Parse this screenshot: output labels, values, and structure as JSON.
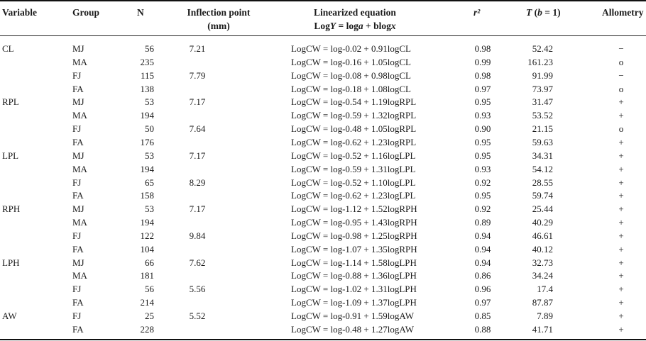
{
  "table": {
    "headers": {
      "variable": "Variable",
      "group": "Group",
      "n": "N",
      "inflection_line1": "Inflection point",
      "inflection_line2": "(mm)",
      "equation_line1": "Linearized equation",
      "equation_line2_pre": "Log",
      "equation_line2_Y": "Y",
      "equation_line2_mid": " = log",
      "equation_line2_a": "a",
      "equation_line2_post": " + blog",
      "equation_line2_x": "x",
      "r2": "r²",
      "t_T": "T",
      "t_rest_open": " (",
      "t_b": "b",
      "t_rest_close": " = 1)",
      "allometry": "Allometry"
    },
    "rows": [
      {
        "variable": "CL",
        "group": "MJ",
        "n": "56",
        "inflection": "7.21",
        "equation": "LogCW = log-0.02 + 0.91logCL",
        "r2": "0.98",
        "t": "52.42",
        "allometry": "−"
      },
      {
        "variable": "",
        "group": "MA",
        "n": "235",
        "inflection": "",
        "equation": "LogCW = log-0.16 + 1.05logCL",
        "r2": "0.99",
        "t": "161.23",
        "allometry": "o"
      },
      {
        "variable": "",
        "group": "FJ",
        "n": "115",
        "inflection": "7.79",
        "equation": "LogCW = log-0.08 + 0.98logCL",
        "r2": "0.98",
        "t": "91.99",
        "allometry": "−"
      },
      {
        "variable": "",
        "group": "FA",
        "n": "138",
        "inflection": "",
        "equation": "LogCW = log-0.18 + 1.08logCL",
        "r2": "0.97",
        "t": "73.97",
        "allometry": "o"
      },
      {
        "variable": "RPL",
        "group": "MJ",
        "n": "53",
        "inflection": "7.17",
        "equation": "LogCW = log-0.54 + 1.19logRPL",
        "r2": "0.95",
        "t": "31.47",
        "allometry": "+"
      },
      {
        "variable": "",
        "group": "MA",
        "n": "194",
        "inflection": "",
        "equation": "LogCW = log-0.59 + 1.32logRPL",
        "r2": "0.93",
        "t": "53.52",
        "allometry": "+"
      },
      {
        "variable": "",
        "group": "FJ",
        "n": "50",
        "inflection": "7.64",
        "equation": "LogCW = log-0.48 + 1.05logRPL",
        "r2": "0.90",
        "t": "21.15",
        "allometry": "o"
      },
      {
        "variable": "",
        "group": "FA",
        "n": "176",
        "inflection": "",
        "equation": "LogCW = log-0.62 + 1.23logRPL",
        "r2": "0.95",
        "t": "59.63",
        "allometry": "+"
      },
      {
        "variable": "LPL",
        "group": "MJ",
        "n": "53",
        "inflection": "7.17",
        "equation": "LogCW = log-0.52 + 1.16logLPL",
        "r2": "0.95",
        "t": "34.31",
        "allometry": "+"
      },
      {
        "variable": "",
        "group": "MA",
        "n": "194",
        "inflection": "",
        "equation": "LogCW = log-0.59 + 1.31logLPL",
        "r2": "0.93",
        "t": "54.12",
        "allometry": "+"
      },
      {
        "variable": "",
        "group": "FJ",
        "n": "65",
        "inflection": "8.29",
        "equation": "LogCW = log-0.52 + 1.10logLPL",
        "r2": "0.92",
        "t": "28.55",
        "allometry": "+"
      },
      {
        "variable": "",
        "group": "FA",
        "n": "158",
        "inflection": "",
        "equation": "LogCW = log-0.62 + 1.23logLPL",
        "r2": "0.95",
        "t": "59.74",
        "allometry": "+"
      },
      {
        "variable": "RPH",
        "group": "MJ",
        "n": "53",
        "inflection": "7.17",
        "equation": "LogCW = log-1.12 + 1.52logRPH",
        "r2": "0.92",
        "t": "25.44",
        "allometry": "+"
      },
      {
        "variable": "",
        "group": "MA",
        "n": "194",
        "inflection": "",
        "equation": "LogCW = log-0.95 + 1.43logRPH",
        "r2": "0.89",
        "t": "40.29",
        "allometry": "+"
      },
      {
        "variable": "",
        "group": "FJ",
        "n": "122",
        "inflection": "9.84",
        "equation": "LogCW = log-0.98 + 1.25logRPH",
        "r2": "0.94",
        "t": "46.61",
        "allometry": "+"
      },
      {
        "variable": "",
        "group": "FA",
        "n": "104",
        "inflection": "",
        "equation": "LogCW = log-1.07 + 1.35logRPH",
        "r2": "0.94",
        "t": "40.12",
        "allometry": "+"
      },
      {
        "variable": "LPH",
        "group": "MJ",
        "n": "66",
        "inflection": "7.62",
        "equation": "LogCW = log-1.14 + 1.58logLPH",
        "r2": "0.94",
        "t": "32.73",
        "allometry": "+"
      },
      {
        "variable": "",
        "group": "MA",
        "n": "181",
        "inflection": "",
        "equation": "LogCW = log-0.88 + 1.36logLPH",
        "r2": "0.86",
        "t": "34.24",
        "allometry": "+"
      },
      {
        "variable": "",
        "group": "FJ",
        "n": "56",
        "inflection": "5.56",
        "equation": "LogCW = log-1.02 + 1.31logLPH",
        "r2": "0.96",
        "t": "17.4",
        "allometry": "+"
      },
      {
        "variable": "",
        "group": "FA",
        "n": "214",
        "inflection": "",
        "equation": "LogCW = log-1.09 + 1.37logLPH",
        "r2": "0.97",
        "t": "87.87",
        "allometry": "+"
      },
      {
        "variable": "AW",
        "group": "FJ",
        "n": "25",
        "inflection": "5.52",
        "equation": "LogCW = log-0.91 + 1.59logAW",
        "r2": "0.85",
        "t": "7.89",
        "allometry": "+"
      },
      {
        "variable": "",
        "group": "FA",
        "n": "228",
        "inflection": "",
        "equation": "LogCW = log-0.48 + 1.27logAW",
        "r2": "0.88",
        "t": "41.71",
        "allometry": "+"
      }
    ]
  }
}
